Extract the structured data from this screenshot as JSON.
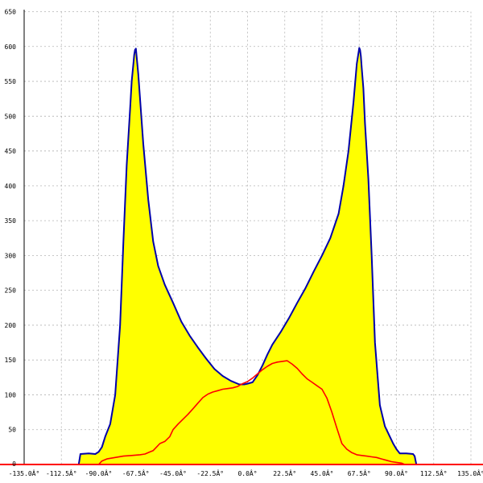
{
  "chart_data": {
    "type": "area",
    "title": "",
    "xlabel": "",
    "ylabel": "",
    "xlim": [
      -135,
      135
    ],
    "ylim": [
      0,
      650
    ],
    "grid": true,
    "x_ticks": [
      -135,
      -112.5,
      -90,
      -67.5,
      -45,
      -22.5,
      0,
      22.5,
      45,
      67.5,
      90,
      112.5,
      135
    ],
    "x_tick_labels": [
      "-135.0Â°",
      "-112.5Â°",
      "-90.0Â°",
      "-67.5Â°",
      "-45.0Â°",
      "-22.5Â°",
      "0.0Â°",
      "22.5Â°",
      "45.0Â°",
      "67.5Â°",
      "90.0Â°",
      "112.5Â°",
      "135.0Â°"
    ],
    "y_ticks": [
      0,
      50,
      100,
      150,
      200,
      250,
      300,
      350,
      400,
      450,
      500,
      550,
      600,
      650
    ],
    "y_tick_labels": [
      "0",
      "50",
      "100",
      "150",
      "200",
      "250",
      "300",
      "350",
      "400",
      "450",
      "500",
      "550",
      "600",
      "650"
    ],
    "colors": {
      "fill": "#ffff00",
      "blue_line": "#0000aa",
      "red_line": "#ff0000",
      "grid": "#b4b4b4",
      "baseline": "#ff0000"
    },
    "series": [
      {
        "x": [
          -102,
          -101,
          -96,
          -92,
          -90,
          -88,
          -86,
          -83,
          -80,
          -77,
          -75,
          -73,
          -71,
          -70,
          -69,
          -68.5,
          -68,
          -67.5,
          -66,
          -63,
          -60,
          -57,
          -54,
          -50,
          -45,
          -40,
          -35,
          -30,
          -25,
          -20,
          -15,
          -10,
          -5,
          -2,
          0,
          3,
          6,
          9,
          12,
          15,
          20,
          25,
          30,
          35,
          40,
          45,
          50,
          55,
          58,
          61,
          64,
          66,
          67.5,
          68,
          68.5,
          69,
          70,
          71,
          73,
          75,
          77,
          80,
          83,
          86,
          88,
          90,
          92,
          96,
          100,
          101,
          102
        ],
        "y": [
          0,
          15,
          16,
          15,
          18,
          25,
          40,
          58,
          100,
          200,
          320,
          430,
          510,
          550,
          575,
          588,
          595,
          597,
          560,
          460,
          380,
          320,
          285,
          258,
          232,
          205,
          185,
          168,
          152,
          137,
          127,
          120,
          115,
          115,
          116,
          118,
          128,
          142,
          158,
          172,
          190,
          210,
          232,
          253,
          277,
          300,
          325,
          360,
          400,
          450,
          520,
          575,
          598,
          595,
          586,
          570,
          540,
          490,
          410,
          300,
          175,
          85,
          55,
          40,
          30,
          22,
          16,
          16,
          15,
          12,
          0
        ]
      },
      {
        "x": [
          -90,
          -88,
          -85,
          -80,
          -75,
          -70,
          -65,
          -62,
          -59,
          -57,
          -55,
          -53,
          -50,
          -47,
          -45,
          -42,
          -39,
          -36,
          -33,
          -30,
          -27,
          -24,
          -21,
          -18,
          -15,
          -12,
          -9,
          -6,
          -3,
          0,
          3,
          6,
          9,
          12,
          15,
          18,
          21,
          24,
          27,
          30,
          33,
          36,
          39,
          42,
          45,
          48,
          51,
          54,
          57,
          60,
          63,
          66,
          69,
          72,
          75,
          78,
          81,
          84,
          87,
          90,
          93,
          95
        ],
        "y": [
          0,
          5,
          8,
          10,
          12,
          13,
          14,
          15,
          18,
          20,
          25,
          30,
          33,
          40,
          50,
          58,
          65,
          72,
          80,
          88,
          96,
          101,
          104,
          106,
          108,
          109,
          110,
          112,
          116,
          119,
          124,
          130,
          136,
          141,
          145,
          147,
          148,
          149,
          144,
          138,
          130,
          123,
          118,
          113,
          108,
          95,
          75,
          52,
          30,
          22,
          17,
          14,
          13,
          12,
          11,
          10,
          8,
          6,
          4,
          3,
          2,
          0
        ]
      }
    ]
  }
}
